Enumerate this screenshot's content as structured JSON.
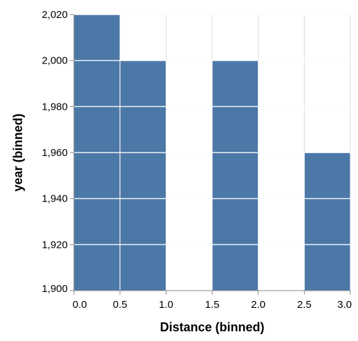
{
  "chart_data": {
    "type": "heatmap",
    "xlabel": "Distance (binned)",
    "ylabel": "year (binned)",
    "xlim": [
      0,
      3
    ],
    "ylim": [
      1900,
      2020
    ],
    "x_ticks": [
      "0.0",
      "0.5",
      "1.0",
      "1.5",
      "2.0",
      "2.5",
      "3.0"
    ],
    "x_tick_values": [
      0,
      0.5,
      1,
      1.5,
      2,
      2.5,
      3
    ],
    "y_ticks": [
      "1,900",
      "1,920",
      "1,940",
      "1,960",
      "1,980",
      "2,000",
      "2,020"
    ],
    "y_tick_values": [
      1900,
      1920,
      1940,
      1960,
      1980,
      2000,
      2020
    ],
    "grid": true,
    "bar_color": "#4c78a8",
    "bars": [
      {
        "x0": 0.0,
        "x1": 0.5,
        "y0": 1900,
        "y1": 2020
      },
      {
        "x0": 0.5,
        "x1": 1.0,
        "y0": 1900,
        "y1": 2000
      },
      {
        "x0": 1.5,
        "x1": 2.0,
        "y0": 1900,
        "y1": 2000
      },
      {
        "x0": 2.5,
        "x1": 3.0,
        "y0": 1900,
        "y1": 1960
      }
    ]
  }
}
